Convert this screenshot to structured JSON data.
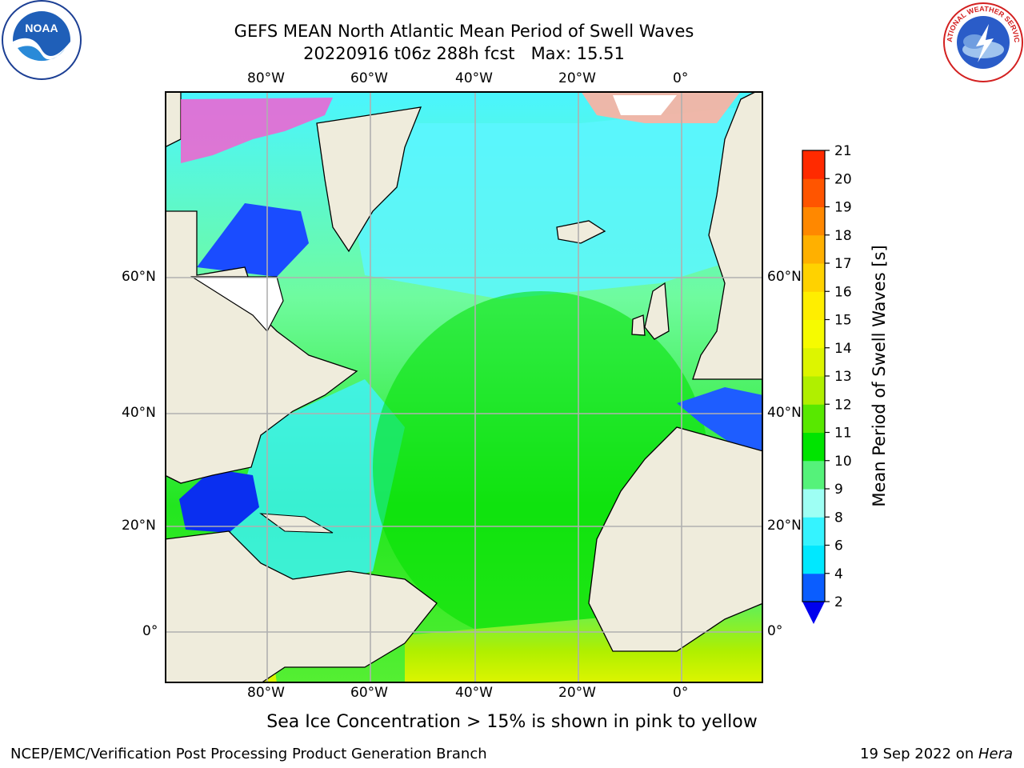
{
  "title": {
    "line1": "GEFS MEAN North Atlantic Mean Period of Swell Waves",
    "line2": "20220916 t06z 288h fcst   Max: 15.51"
  },
  "logos": {
    "noaa": {
      "icon": "noaa-logo",
      "text": "NOAA"
    },
    "nws": {
      "icon": "nws-logo",
      "text": "NATIONAL WEATHER SERVICE"
    }
  },
  "map": {
    "lon_labels": [
      "80°W",
      "60°W",
      "40°W",
      "20°W",
      "0°"
    ],
    "lat_labels": [
      "60°N",
      "40°N",
      "20°N",
      "0°"
    ],
    "colors": {
      "land": "#efecdc",
      "coast": "#000000",
      "grid": "#b0b0b0",
      "no_data": "#ffffff"
    }
  },
  "colorbar": {
    "label": "Mean Period of Swell Waves [s]",
    "ticks": [
      "2",
      "4",
      "6",
      "8",
      "9",
      "10",
      "11",
      "12",
      "13",
      "14",
      "15",
      "16",
      "17",
      "18",
      "19",
      "20",
      "21"
    ],
    "colors": [
      "#0a5dff",
      "#00e8ff",
      "#35f3ff",
      "#9efff4",
      "#55f27a",
      "#00e400",
      "#58e800",
      "#b0ef00",
      "#ddf500",
      "#f6fb00",
      "#ffee00",
      "#ffd200",
      "#ffb000",
      "#ff8800",
      "#ff5500",
      "#ff2a00"
    ],
    "under_color": "#0000ee"
  },
  "subtitle": "Sea Ice Concentration > 15% is shown in pink to yellow",
  "footer": {
    "left": "NCEP/EMC/Verification Post Processing Product Generation Branch",
    "right_text": "19 Sep 2022 on ",
    "right_machine": "Hera"
  }
}
